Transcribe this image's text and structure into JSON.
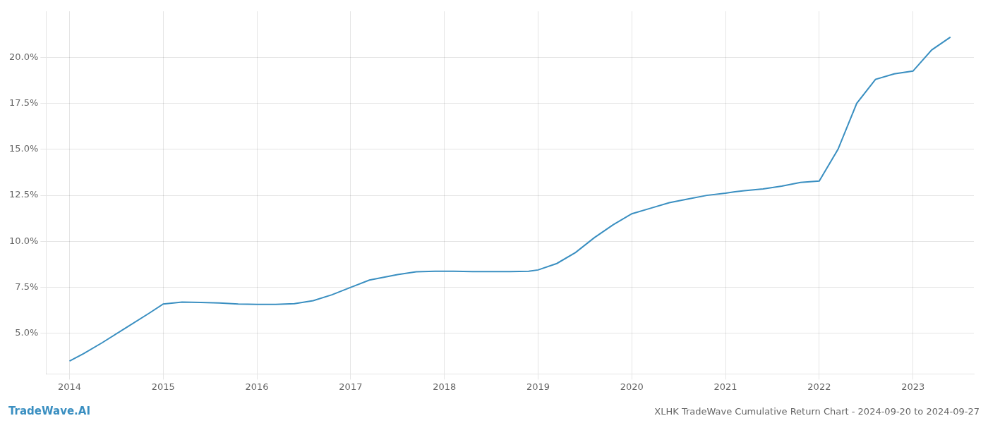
{
  "chart_data": {
    "type": "line",
    "title": "XLHK TradeWave Cumulative Return Chart - 2024-09-20 to 2024-09-27",
    "annotations": [
      "TradeWave.AI"
    ],
    "x": [
      2014.0,
      2014.15,
      2014.35,
      2014.6,
      2014.85,
      2015.0,
      2015.2,
      2015.4,
      2015.6,
      2015.8,
      2016.0,
      2016.2,
      2016.4,
      2016.6,
      2016.8,
      2017.0,
      2017.2,
      2017.5,
      2017.7,
      2017.9,
      2018.0,
      2018.1,
      2018.3,
      2018.5,
      2018.7,
      2018.9,
      2019.0,
      2019.2,
      2019.4,
      2019.6,
      2019.8,
      2020.0,
      2020.2,
      2020.4,
      2020.6,
      2020.8,
      2021.0,
      2021.1,
      2021.2,
      2021.4,
      2021.6,
      2021.8,
      2022.0,
      2022.2,
      2022.4,
      2022.6,
      2022.8,
      2023.0,
      2023.2,
      2023.4
    ],
    "values": [
      3.5,
      3.9,
      4.5,
      5.3,
      6.1,
      6.6,
      6.7,
      6.68,
      6.65,
      6.6,
      6.58,
      6.58,
      6.62,
      6.78,
      7.1,
      7.5,
      7.9,
      8.2,
      8.35,
      8.38,
      8.38,
      8.38,
      8.36,
      8.36,
      8.36,
      8.38,
      8.45,
      8.8,
      9.4,
      10.2,
      10.9,
      11.5,
      11.8,
      12.1,
      12.3,
      12.5,
      12.62,
      12.7,
      12.75,
      12.85,
      13.0,
      13.2,
      13.28,
      15.0,
      17.5,
      18.8,
      19.1,
      19.25,
      20.4,
      21.1
    ],
    "color": "#3a8fc1",
    "xlim": [
      2013.75,
      2023.65
    ],
    "ylim": [
      2.8,
      22.5
    ],
    "xticks": [
      2014,
      2015,
      2016,
      2017,
      2018,
      2019,
      2020,
      2021,
      2022,
      2023
    ],
    "yticks": [
      {
        "value": 5.0,
        "label": "5.0%"
      },
      {
        "value": 7.5,
        "label": "7.5%"
      },
      {
        "value": 10.0,
        "label": "10.0%"
      },
      {
        "value": 12.5,
        "label": "12.5%"
      },
      {
        "value": 15.0,
        "label": "15.0%"
      },
      {
        "value": 17.5,
        "label": "17.5%"
      },
      {
        "value": 20.0,
        "label": "20.0%"
      }
    ],
    "grid": true
  }
}
